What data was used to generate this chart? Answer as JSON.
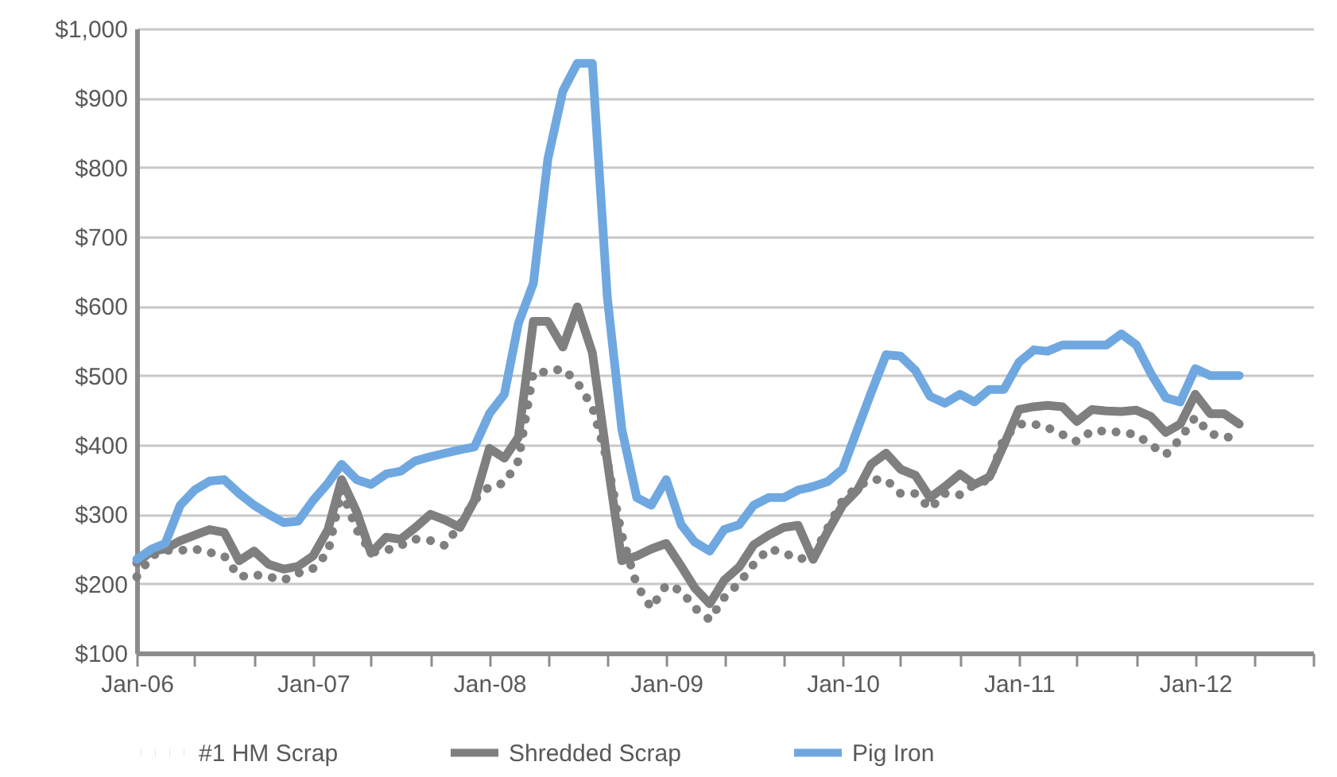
{
  "chart_data": {
    "type": "line",
    "x": [
      "2006-01",
      "2006-02",
      "2006-03",
      "2006-04",
      "2006-05",
      "2006-06",
      "2006-07",
      "2006-08",
      "2006-09",
      "2006-10",
      "2006-11",
      "2006-12",
      "2007-01",
      "2007-02",
      "2007-03",
      "2007-04",
      "2007-05",
      "2007-06",
      "2007-07",
      "2007-08",
      "2007-09",
      "2007-10",
      "2007-11",
      "2007-12",
      "2008-01",
      "2008-02",
      "2008-03",
      "2008-04",
      "2008-05",
      "2008-06",
      "2008-07",
      "2008-08",
      "2008-09",
      "2008-10",
      "2008-11",
      "2008-12",
      "2009-01",
      "2009-02",
      "2009-03",
      "2009-04",
      "2009-05",
      "2009-06",
      "2009-07",
      "2009-08",
      "2009-09",
      "2009-10",
      "2009-11",
      "2009-12",
      "2010-01",
      "2010-02",
      "2010-03",
      "2010-04",
      "2010-05",
      "2010-06",
      "2010-07",
      "2010-08",
      "2010-09",
      "2010-10",
      "2010-11",
      "2010-12",
      "2011-01",
      "2011-02",
      "2011-03",
      "2011-04",
      "2011-05",
      "2011-06",
      "2011-07",
      "2011-08",
      "2011-09",
      "2011-10",
      "2011-11",
      "2011-12",
      "2012-01",
      "2012-02",
      "2012-03",
      "2012-04"
    ],
    "series": [
      {
        "name": "#1 HM Scrap",
        "color": "#7f7f7f",
        "line_style": "dotted",
        "values": [
          210,
          240,
          248,
          248,
          250,
          245,
          240,
          210,
          213,
          210,
          205,
          215,
          222,
          245,
          335,
          278,
          245,
          248,
          255,
          264,
          262,
          255,
          285,
          320,
          340,
          345,
          377,
          505,
          505,
          510,
          490,
          455,
          377,
          270,
          198,
          165,
          198,
          190,
          165,
          148,
          180,
          201,
          228,
          250,
          245,
          235,
          240,
          280,
          320,
          340,
          350,
          350,
          330,
          330,
          308,
          330,
          328,
          343,
          350,
          410,
          430,
          430,
          425,
          415,
          405,
          420,
          420,
          418,
          415,
          400,
          386,
          409,
          440,
          416,
          412,
          409
        ]
      },
      {
        "name": "Shredded Scrap",
        "color": "#7f7f7f",
        "line_style": "solid",
        "values": [
          230,
          247,
          250,
          262,
          270,
          278,
          274,
          233,
          247,
          228,
          221,
          225,
          240,
          278,
          350,
          304,
          244,
          267,
          264,
          281,
          300,
          292,
          281,
          320,
          395,
          381,
          411,
          578,
          578,
          541,
          599,
          533,
          377,
          233,
          240,
          250,
          258,
          225,
          194,
          171,
          205,
          224,
          256,
          270,
          281,
          284,
          235,
          275,
          313,
          335,
          372,
          388,
          365,
          356,
          324,
          340,
          358,
          343,
          354,
          400,
          451,
          455,
          457,
          455,
          434,
          451,
          449,
          448,
          450,
          441,
          418,
          430,
          473,
          445,
          445,
          430
        ]
      },
      {
        "name": "Pig Iron",
        "color": "#6fa8e0",
        "line_style": "solid",
        "values": [
          235,
          250,
          258,
          313,
          335,
          348,
          350,
          330,
          313,
          300,
          288,
          290,
          320,
          345,
          372,
          350,
          343,
          358,
          362,
          377,
          383,
          388,
          393,
          397,
          445,
          473,
          575,
          633,
          812,
          910,
          950,
          950,
          613,
          423,
          324,
          313,
          350,
          285,
          260,
          247,
          278,
          285,
          313,
          324,
          324,
          335,
          340,
          347,
          365,
          423,
          475,
          530,
          528,
          507,
          470,
          460,
          473,
          462,
          480,
          480,
          519,
          537,
          535,
          544,
          544,
          544,
          544,
          560,
          544,
          503,
          468,
          462,
          510,
          500,
          500,
          500
        ]
      }
    ],
    "xlim": [
      "2006-01",
      "2012-09"
    ],
    "xticks": [
      {
        "value": "2006-01",
        "label": "Jan-06"
      },
      {
        "value": "2006-05",
        "label": null
      },
      {
        "value": "2006-09",
        "label": null
      },
      {
        "value": "2007-01",
        "label": "Jan-07"
      },
      {
        "value": "2007-05",
        "label": null
      },
      {
        "value": "2007-09",
        "label": null
      },
      {
        "value": "2008-01",
        "label": "Jan-08"
      },
      {
        "value": "2008-05",
        "label": null
      },
      {
        "value": "2008-09",
        "label": null
      },
      {
        "value": "2009-01",
        "label": "Jan-09"
      },
      {
        "value": "2009-05",
        "label": null
      },
      {
        "value": "2009-09",
        "label": null
      },
      {
        "value": "2010-01",
        "label": "Jan-10"
      },
      {
        "value": "2010-05",
        "label": null
      },
      {
        "value": "2010-09",
        "label": null
      },
      {
        "value": "2011-01",
        "label": "Jan-11"
      },
      {
        "value": "2011-05",
        "label": null
      },
      {
        "value": "2011-09",
        "label": null
      },
      {
        "value": "2012-01",
        "label": "Jan-12"
      },
      {
        "value": "2012-05",
        "label": null
      },
      {
        "value": "2012-09",
        "label": null
      }
    ],
    "ylim": [
      100,
      1000
    ],
    "yticks": [
      {
        "value": 100,
        "label": "$100"
      },
      {
        "value": 200,
        "label": "$200"
      },
      {
        "value": 300,
        "label": "$300"
      },
      {
        "value": 400,
        "label": "$400"
      },
      {
        "value": 500,
        "label": "$500"
      },
      {
        "value": 600,
        "label": "$600"
      },
      {
        "value": 700,
        "label": "$700"
      },
      {
        "value": 800,
        "label": "$800"
      },
      {
        "value": 900,
        "label": "$900"
      },
      {
        "value": 1000,
        "label": "$1,000"
      }
    ],
    "grid": "y",
    "legend": "bottom"
  }
}
